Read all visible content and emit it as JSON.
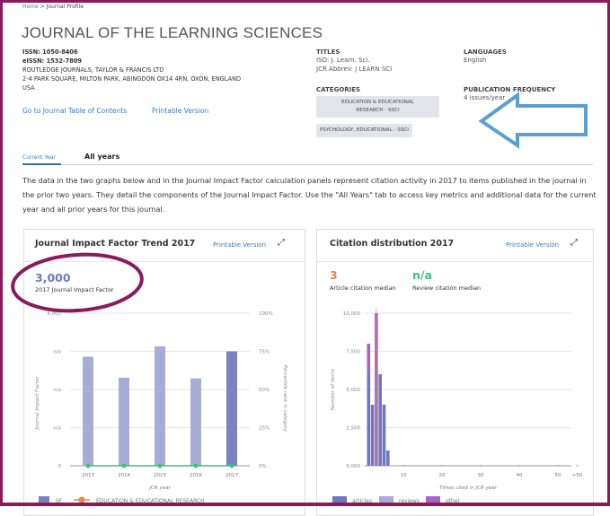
{
  "breadcrumb": {
    "home": "Home",
    "sep": ">",
    "current": "Journal Profile"
  },
  "journal": {
    "title": "JOURNAL OF THE LEARNING SCIENCES",
    "issn": "ISSN: 1050-8406",
    "eissn": "eISSN: 1532-7809",
    "publisher": "ROUTLEDGE JOURNALS, TAYLOR & FRANCIS LTD",
    "address": "2-4 PARK SQUARE, MILTON PARK, ABINGDON OX14 4RN, OXON, ENGLAND",
    "country": "USA",
    "toc_link": "Go to Journal Table of Contents",
    "printable": "Printable Version"
  },
  "titles": {
    "label": "TITLES",
    "iso": "ISO: J. Learn. Sci.",
    "jcr": "JCR Abbrev: J LEARN SCI"
  },
  "languages": {
    "label": "LANGUAGES",
    "value": "English"
  },
  "categories": {
    "label": "CATEGORIES",
    "items": [
      "EDUCATION & EDUCATIONAL RESEARCH - SSCI",
      "PSYCHOLOGY, EDUCATIONAL - SSCI"
    ]
  },
  "frequency": {
    "label": "PUBLICATION FREQUENCY",
    "value": "4 issues/year"
  },
  "tabs": [
    {
      "label": "Current Year",
      "active": true
    },
    {
      "label": "All years",
      "active": false
    }
  ],
  "description": "The data in the two graphs below and in the Journal Impact Factor calculation panels represent citation activity in 2017 to items published in the journal in the prior two years. They detail the components of the Journal Impact Factor. Use the \"All Years\" tab to access key metrics and additional data for the current year and all prior years for this journal.",
  "jif_panel": {
    "title": "Journal Impact Factor Trend 2017",
    "printable": "Printable Version",
    "value": "3,000",
    "value_label": "2017 Journal Impact Factor"
  },
  "cite_panel": {
    "title": "Citation distribution 2017",
    "printable": "Printable Version",
    "article_median": "3",
    "article_median_label": "Article citation median",
    "review_median": "n/a",
    "review_median_label": "Review citation median"
  },
  "annotations": {
    "arrow_color": "#5a9fd4",
    "ellipse_color": "#8b1a5a"
  },
  "chart_data": [
    {
      "type": "bar",
      "categories": [
        "2013",
        "2014",
        "2015",
        "2016",
        "2017"
      ],
      "series": [
        {
          "name": "JIF",
          "values": [
            2.86,
            2.31,
            3.13,
            2.29,
            3.0
          ],
          "colors": [
            "#a7acd6",
            "#a7acd6",
            "#a7acd6",
            "#a7acd6",
            "#7a83bf"
          ]
        },
        {
          "name": "EDUCATION & EDUCATIONAL RESEARCH",
          "type": "line",
          "axis": "right",
          "values": [
            0,
            0,
            0,
            0,
            0
          ],
          "color": "#3cc07c"
        }
      ],
      "xlabel": "JCR year",
      "ylabel": "Journal Impact Factor",
      "ylabel_right": "Percentile rank in category",
      "yticks": [
        "0",
        "n/a",
        "n/a",
        "n/a",
        "4,000"
      ],
      "yticks_right": [
        "0%",
        "25%",
        "50%",
        "75%",
        "100%"
      ],
      "ylim": [
        0,
        4
      ],
      "grid": true,
      "legend": "bottom"
    },
    {
      "type": "bar",
      "stacked": true,
      "x": [
        1,
        2,
        3,
        4,
        5,
        6
      ],
      "series": [
        {
          "name": "articles",
          "values": [
            6000,
            4000,
            0,
            6000,
            4000,
            1000
          ],
          "color": "#6f78be"
        },
        {
          "name": "reviews",
          "values": [
            0,
            0,
            0,
            0,
            0,
            0
          ],
          "color": "#a7acd6"
        },
        {
          "name": "other",
          "values": [
            2000,
            0,
            10000,
            0,
            0,
            0
          ],
          "color": "#a664c4"
        }
      ],
      "median_line": 3,
      "xlabel": "Times cited in JCR year",
      "ylabel": "Number of items",
      "xticks": [
        "10",
        "20",
        "30",
        "40",
        "50",
        ">50"
      ],
      "yticks": [
        "0,000",
        "2,500",
        "5,000",
        "7,500",
        "10,000"
      ],
      "ylim": [
        0,
        10000
      ],
      "xlim": [
        0,
        50
      ],
      "grid": true,
      "legend": "bottom"
    }
  ]
}
